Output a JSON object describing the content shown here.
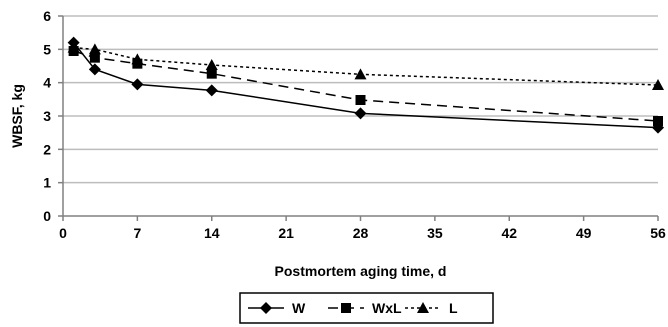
{
  "chart_data": {
    "type": "line",
    "title": "",
    "xlabel": "Postmortem aging time, d",
    "ylabel": "WBSF, kg",
    "xlim": [
      0,
      56
    ],
    "ylim": [
      0,
      6
    ],
    "xticks": [
      0,
      7,
      14,
      21,
      28,
      35,
      42,
      49,
      56
    ],
    "yticks": [
      0,
      1,
      2,
      3,
      4,
      5,
      6
    ],
    "grid": "horizontal",
    "legend_position": "bottom",
    "series": [
      {
        "name": "W",
        "marker": "diamond",
        "line_style": "solid",
        "color": "#000000",
        "x": [
          1,
          3,
          7,
          14,
          28,
          56
        ],
        "y": [
          5.2,
          4.4,
          3.95,
          3.77,
          3.08,
          2.65
        ]
      },
      {
        "name": "WxL",
        "marker": "square",
        "line_style": "dashed",
        "color": "#000000",
        "x": [
          1,
          3,
          7,
          14,
          28,
          56
        ],
        "y": [
          4.95,
          4.75,
          4.57,
          4.27,
          3.48,
          2.85
        ]
      },
      {
        "name": "L",
        "marker": "triangle",
        "line_style": "dotted",
        "color": "#000000",
        "x": [
          1,
          3,
          7,
          14,
          28,
          56
        ],
        "y": [
          5.05,
          5.0,
          4.7,
          4.53,
          4.25,
          3.93
        ]
      }
    ]
  }
}
